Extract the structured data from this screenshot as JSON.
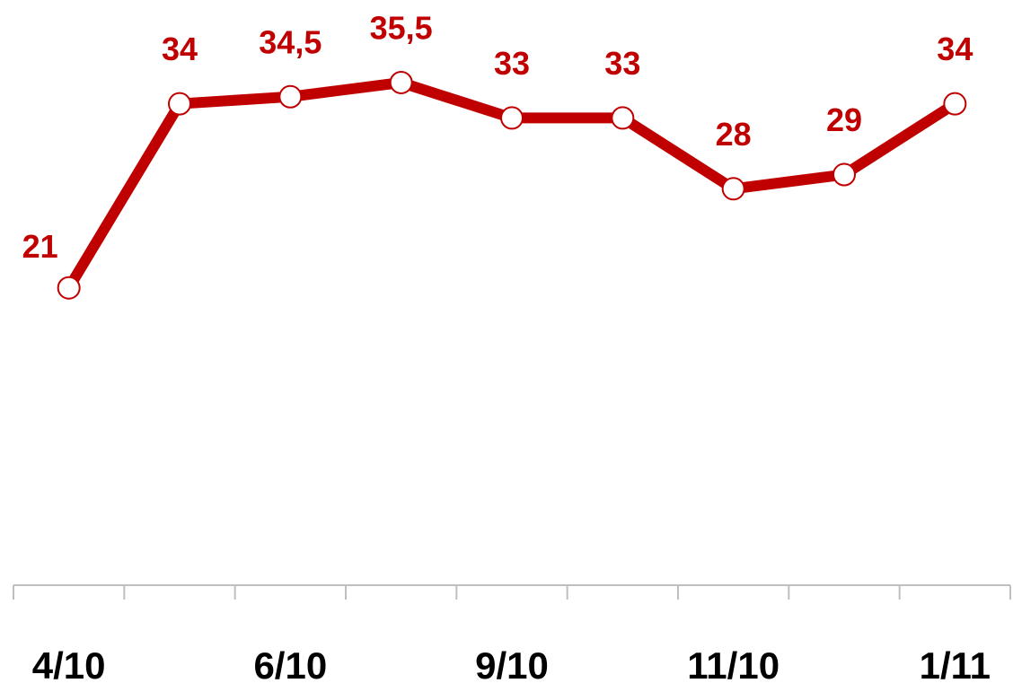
{
  "chart_data": {
    "type": "line",
    "categories": [
      "4/10",
      null,
      "6/10",
      null,
      "9/10",
      null,
      "11/10",
      null,
      "1/11"
    ],
    "series": [
      {
        "color": "#c00000",
        "values": [
          21,
          34,
          34.5,
          35.5,
          33,
          33,
          28,
          29,
          34
        ],
        "value_labels": [
          "21",
          "34",
          "34,5",
          "35,5",
          "33",
          "33",
          "28",
          "29",
          "34"
        ]
      }
    ],
    "ylim": [
      0,
      40
    ]
  }
}
